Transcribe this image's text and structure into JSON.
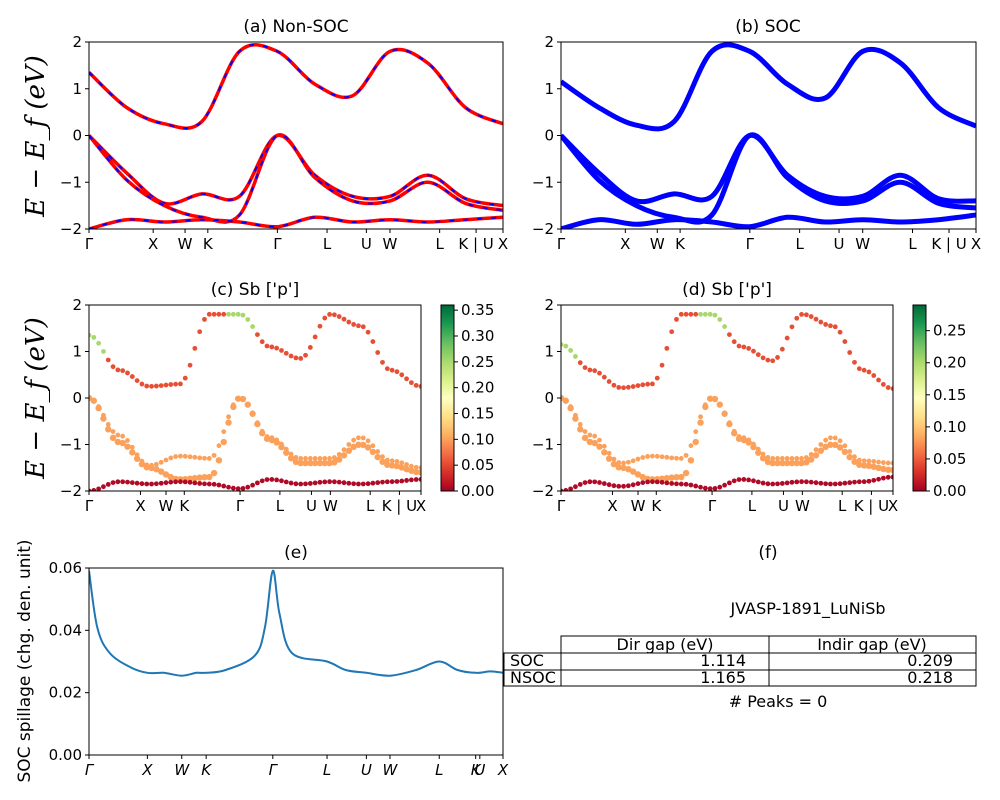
{
  "figure": {
    "ylabel_energy": "E − E_f (eV)",
    "ylabel_spillage": "SOC spillage (chg. den. unit)"
  },
  "colors": {
    "nonsoc_red": "#ff0000",
    "nonsoc_blue": "#0000ff",
    "soc_blue": "#0000ff",
    "spillage_line": "#1f77b4",
    "colormap": "RdYlGn"
  },
  "chart_data": [
    {
      "id": "a",
      "type": "line",
      "title": "(a) Non-SOC",
      "ylabel": "E − E_f (eV)",
      "ylim": [
        -2,
        2
      ],
      "yticks": [
        "−2",
        "−1",
        "0",
        "1",
        "2"
      ],
      "kpath": [
        "Γ",
        "X",
        "W",
        "K",
        "Γ",
        "L",
        "U",
        "W",
        "L",
        "K | U",
        "X"
      ],
      "kpos": [
        0,
        0.155,
        0.232,
        0.287,
        0.455,
        0.575,
        0.67,
        0.727,
        0.847,
        0.935,
        1.0
      ],
      "style": "red solid with blue dashes",
      "series": [
        {
          "values": [
            0,
            -0.8,
            -1.45,
            -1.25,
            -1.3,
            0,
            -0.85,
            -1.3,
            -1.3,
            -0.85,
            -1.35,
            -1.5
          ]
        },
        {
          "values": [
            0,
            -0.95,
            -1.5,
            -1.75,
            -1.7,
            0,
            -0.9,
            -1.4,
            -1.4,
            -1.0,
            -1.45,
            -1.6
          ]
        },
        {
          "values": [
            1.35,
            0.6,
            0.25,
            0.3,
            1.8,
            1.8,
            1.1,
            0.85,
            1.8,
            1.55,
            0.6,
            0.25
          ]
        },
        {
          "values": [
            -2.0,
            -1.8,
            -1.85,
            -1.8,
            -1.85,
            -1.95,
            -1.75,
            -1.85,
            -1.8,
            -1.85,
            -1.8,
            -1.75
          ]
        }
      ]
    },
    {
      "id": "b",
      "type": "line",
      "title": "(b) SOC",
      "ylabel": "",
      "ylim": [
        -2,
        2
      ],
      "yticks": [
        "−2",
        "−1",
        "0",
        "1",
        "2"
      ],
      "kpath": [
        "Γ",
        "X",
        "W",
        "K",
        "Γ",
        "L",
        "U",
        "W",
        "L",
        "K | U",
        "X"
      ],
      "kpos": [
        0,
        0.155,
        0.232,
        0.287,
        0.455,
        0.575,
        0.67,
        0.727,
        0.847,
        0.935,
        1.0
      ],
      "style": "blue thick",
      "series": [
        {
          "values": [
            0,
            -0.8,
            -1.4,
            -1.25,
            -1.3,
            0,
            -0.85,
            -1.3,
            -1.3,
            -0.85,
            -1.35,
            -1.4
          ]
        },
        {
          "values": [
            0,
            -0.95,
            -1.5,
            -1.75,
            -1.7,
            0,
            -0.9,
            -1.4,
            -1.4,
            -1.0,
            -1.45,
            -1.55
          ]
        },
        {
          "values": [
            1.15,
            0.6,
            0.22,
            0.3,
            1.8,
            1.8,
            1.1,
            0.8,
            1.8,
            1.55,
            0.6,
            0.2
          ]
        },
        {
          "values": [
            -2.0,
            -1.8,
            -1.9,
            -1.8,
            -1.85,
            -1.95,
            -1.75,
            -1.85,
            -1.8,
            -1.85,
            -1.8,
            -1.7
          ]
        }
      ]
    },
    {
      "id": "c",
      "type": "scatter",
      "title": "(c)  Sb ['p']",
      "ylabel": "E − E_f (eV)",
      "ylim": [
        -2,
        2
      ],
      "yticks": [
        "−2",
        "−1",
        "0",
        "1",
        "2"
      ],
      "kpath": [
        "Γ",
        "X",
        "W",
        "K",
        "Γ",
        "L",
        "U",
        "W",
        "L",
        "K | U",
        "X"
      ],
      "kpos": [
        0,
        0.155,
        0.232,
        0.287,
        0.455,
        0.575,
        0.67,
        0.727,
        0.847,
        0.935,
        1.0
      ],
      "colorbar": {
        "min": 0.0,
        "max": 0.36,
        "ticks": [
          "0.00",
          "0.05",
          "0.10",
          "0.15",
          "0.20",
          "0.25",
          "0.30",
          "0.35"
        ]
      }
    },
    {
      "id": "d",
      "type": "scatter",
      "title": "(d) Sb ['p']",
      "ylabel": "",
      "ylim": [
        -2,
        2
      ],
      "yticks": [
        "−2",
        "−1",
        "0",
        "1",
        "2"
      ],
      "kpath": [
        "Γ",
        "X",
        "W",
        "K",
        "Γ",
        "L",
        "U",
        "W",
        "L",
        "K | U",
        "X"
      ],
      "kpos": [
        0,
        0.155,
        0.232,
        0.287,
        0.455,
        0.575,
        0.67,
        0.727,
        0.847,
        0.935,
        1.0
      ],
      "colorbar": {
        "min": 0.0,
        "max": 0.29,
        "ticks": [
          "0.00",
          "0.05",
          "0.10",
          "0.15",
          "0.20",
          "0.25"
        ]
      }
    },
    {
      "id": "e",
      "type": "line",
      "title": "(e)",
      "ylabel": "SOC spillage (chg. den. unit)",
      "ylim": [
        0,
        0.066
      ],
      "yticks": [
        "0.00",
        "0.02",
        "0.04",
        "0.06"
      ],
      "kpath": [
        "Γ",
        "X",
        "W",
        "K",
        "Γ",
        "L",
        "U",
        "W",
        "L",
        "K",
        "U",
        "X"
      ],
      "kpos": [
        0,
        0.141,
        0.224,
        0.283,
        0.444,
        0.575,
        0.67,
        0.727,
        0.846,
        0.934,
        0.944,
        1.0
      ],
      "x": [
        0,
        0.02,
        0.05,
        0.1,
        0.141,
        0.18,
        0.224,
        0.26,
        0.283,
        0.33,
        0.4,
        0.425,
        0.444,
        0.46,
        0.49,
        0.575,
        0.62,
        0.67,
        0.727,
        0.79,
        0.846,
        0.89,
        0.934,
        0.97,
        1.0
      ],
      "values": [
        0.065,
        0.045,
        0.036,
        0.031,
        0.029,
        0.029,
        0.028,
        0.029,
        0.029,
        0.03,
        0.035,
        0.045,
        0.065,
        0.05,
        0.036,
        0.033,
        0.03,
        0.029,
        0.028,
        0.03,
        0.033,
        0.03,
        0.029,
        0.0295,
        0.029
      ]
    }
  ],
  "panel_f": {
    "title": "(f)",
    "material": "JVASP-1891_LuNiSb",
    "col_dir": "Dir gap (eV)",
    "col_indir": "Indir gap (eV)",
    "rows": [
      {
        "label": "SOC",
        "dir": "1.114",
        "indir": "0.209"
      },
      {
        "label": "NSOC",
        "dir": "1.165",
        "indir": "0.218"
      }
    ],
    "peaks": "# Peaks = 0"
  }
}
